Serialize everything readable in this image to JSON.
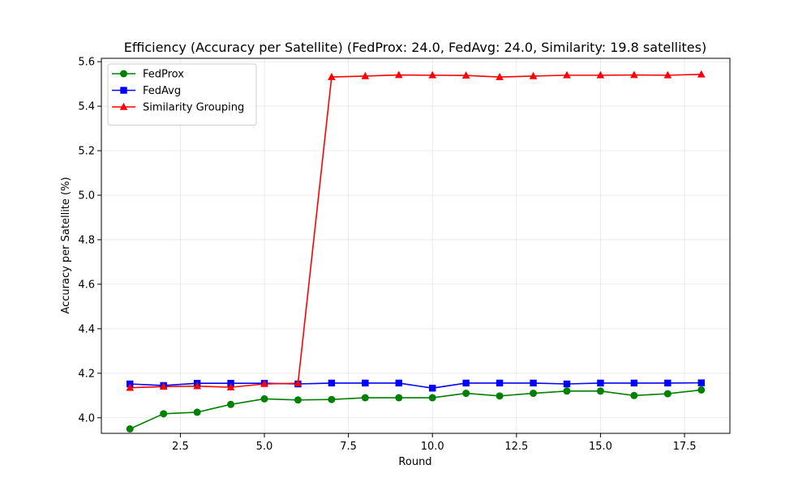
{
  "chart_data": {
    "type": "line",
    "title": "Efficiency (Accuracy per Satellite) (FedProx: 24.0, FedAvg: 24.0, Similarity: 19.8 satellites)",
    "xlabel": "Round",
    "ylabel": "Accuracy per Satellite (%)",
    "xlim": [
      0.15,
      18.85
    ],
    "ylim": [
      3.93,
      5.615
    ],
    "xticks": [
      2.5,
      5.0,
      7.5,
      10.0,
      12.5,
      15.0,
      17.5
    ],
    "xtick_labels": [
      "2.5",
      "5.0",
      "7.5",
      "10.0",
      "12.5",
      "15.0",
      "17.5"
    ],
    "yticks": [
      4.0,
      4.2,
      4.4,
      4.6,
      4.8,
      5.0,
      5.2,
      5.4,
      5.6
    ],
    "ytick_labels": [
      "4.0",
      "4.2",
      "4.4",
      "4.6",
      "4.8",
      "5.0",
      "5.2",
      "5.4",
      "5.6"
    ],
    "grid": true,
    "legend_position": "top-left",
    "x": [
      1,
      2,
      3,
      4,
      5,
      6,
      7,
      8,
      9,
      10,
      11,
      12,
      13,
      14,
      15,
      16,
      17,
      18
    ],
    "series": [
      {
        "name": "FedProx",
        "color": "#008000",
        "marker": "circle",
        "values": [
          3.95,
          4.018,
          4.025,
          4.06,
          4.085,
          4.08,
          4.082,
          4.09,
          4.09,
          4.09,
          4.11,
          4.098,
          4.11,
          4.12,
          4.12,
          4.1,
          4.108,
          4.125
        ]
      },
      {
        "name": "FedAvg",
        "color": "#0000ff",
        "marker": "square",
        "values": [
          4.152,
          4.145,
          4.155,
          4.155,
          4.155,
          4.152,
          4.156,
          4.156,
          4.156,
          4.133,
          4.156,
          4.156,
          4.156,
          4.152,
          4.156,
          4.156,
          4.156,
          4.157
        ]
      },
      {
        "name": "Similarity Grouping",
        "color": "#ff0000",
        "marker": "triangle",
        "values": [
          4.135,
          4.14,
          4.142,
          4.137,
          4.152,
          4.155,
          5.531,
          5.535,
          5.54,
          5.539,
          5.538,
          5.531,
          5.535,
          5.539,
          5.539,
          5.54,
          5.539,
          5.543
        ]
      }
    ]
  }
}
